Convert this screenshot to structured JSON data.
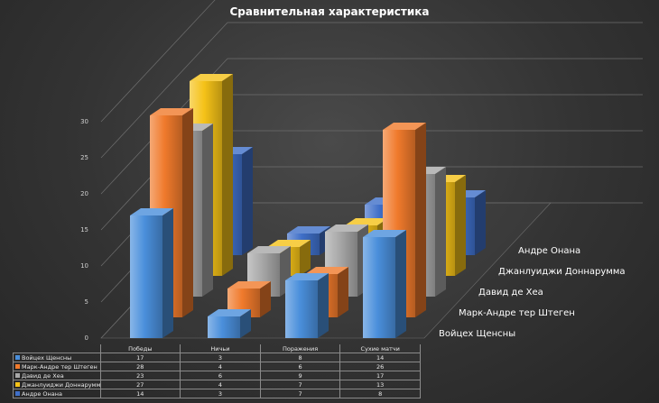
{
  "chart_data": {
    "type": "bar",
    "title": "Сравнительная характеристика",
    "categories": [
      "Победы",
      "Ничьи",
      "Поражения",
      "Сухие матчи"
    ],
    "series": [
      {
        "name": "Войцех Щенсны",
        "color": "#4a8fdb",
        "values": [
          17,
          3,
          8,
          14
        ]
      },
      {
        "name": "Марк-Андре тер Штеген",
        "color": "#f07a2c",
        "values": [
          28,
          4,
          6,
          26
        ]
      },
      {
        "name": "Давид де Хеа",
        "color": "#a8a8a8",
        "values": [
          23,
          6,
          9,
          17
        ]
      },
      {
        "name": "Джанлуиджи Доннарумма",
        "color": "#f5c218",
        "values": [
          27,
          4,
          7,
          13
        ]
      },
      {
        "name": "Андре Онана",
        "color": "#3f6fc8",
        "values": [
          14,
          3,
          7,
          8
        ]
      }
    ],
    "yticks": [
      0,
      5,
      10,
      15,
      20,
      25,
      30
    ],
    "ylim": [
      0,
      30
    ],
    "grid": true,
    "data_table": true
  }
}
